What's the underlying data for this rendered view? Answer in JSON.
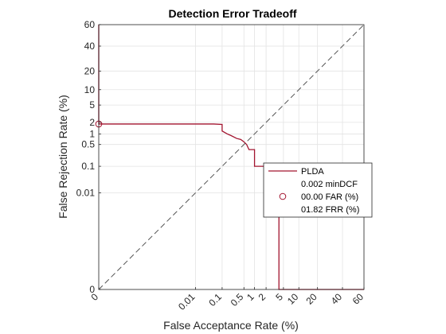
{
  "chart_data": {
    "type": "line",
    "title": "Detection Error Tradeoff",
    "xlabel": "False Acceptance Rate (%)",
    "ylabel": "False Rejection Rate (%)",
    "scale": "normal-deviate (probit)",
    "grid": true,
    "xlim": [
      0,
      60
    ],
    "ylim": [
      0,
      60
    ],
    "x_ticks": [
      {
        "label": "0",
        "value": 0
      },
      {
        "label": "0.01",
        "value": 0.01
      },
      {
        "label": "0.1",
        "value": 0.1
      },
      {
        "label": "0.5",
        "value": 0.5
      },
      {
        "label": "1",
        "value": 1
      },
      {
        "label": "2",
        "value": 2
      },
      {
        "label": "5",
        "value": 5
      },
      {
        "label": "10",
        "value": 10
      },
      {
        "label": "20",
        "value": 20
      },
      {
        "label": "40",
        "value": 40
      },
      {
        "label": "60",
        "value": 60
      }
    ],
    "y_ticks": [
      {
        "label": "0",
        "value": 0
      },
      {
        "label": "0.01",
        "value": 0.01
      },
      {
        "label": "0.1",
        "value": 0.1
      },
      {
        "label": "0.5",
        "value": 0.5
      },
      {
        "label": "1",
        "value": 1
      },
      {
        "label": "2",
        "value": 2
      },
      {
        "label": "5",
        "value": 5
      },
      {
        "label": "10",
        "value": 10
      },
      {
        "label": "20",
        "value": 20
      },
      {
        "label": "40",
        "value": 40
      },
      {
        "label": "60",
        "value": 60
      }
    ],
    "series": [
      {
        "name": "PLDA",
        "color": "#a2142f",
        "points": [
          [
            0,
            60
          ],
          [
            0,
            1.82
          ],
          [
            0.05,
            1.82
          ],
          [
            0.1,
            1.78
          ],
          [
            0.1,
            1.2
          ],
          [
            0.15,
            1.0
          ],
          [
            0.2,
            0.9
          ],
          [
            0.3,
            0.75
          ],
          [
            0.4,
            0.7
          ],
          [
            0.5,
            0.6
          ],
          [
            0.6,
            0.5
          ],
          [
            0.7,
            0.35
          ],
          [
            1,
            0.35
          ],
          [
            1,
            0.1
          ],
          [
            4,
            0.1
          ],
          [
            4,
            0
          ],
          [
            60,
            0
          ]
        ]
      },
      {
        "name": "",
        "color": "#555555",
        "dashed": true,
        "points": [
          [
            0,
            0
          ],
          [
            60,
            60
          ]
        ]
      }
    ],
    "marker": {
      "x": 0,
      "y": 1.82,
      "color": "#a2142f"
    },
    "legend": {
      "placement": "right",
      "entries": [
        {
          "label": "PLDA",
          "symbol": "line",
          "color": "#a2142f"
        },
        {
          "label": "0.002 minDCF",
          "symbol": "none"
        },
        {
          "label": "00.00 FAR (%)",
          "symbol": "circle",
          "color": "#a2142f"
        },
        {
          "label": "01.82 FRR (%)",
          "symbol": "none"
        }
      ]
    }
  }
}
